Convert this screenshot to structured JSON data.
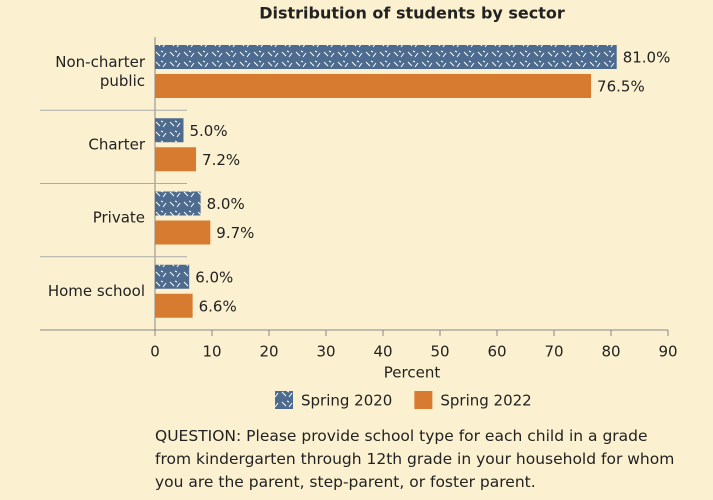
{
  "chart_data": {
    "type": "hbar",
    "title": "Distribution of students by sector",
    "categories": [
      "Non-charter\npublic",
      "Charter",
      "Private",
      "Home school"
    ],
    "series": [
      {
        "name": "Spring 2020",
        "color": "#4d6b8e",
        "pattern": true,
        "values": [
          81.0,
          5.0,
          8.0,
          6.0
        ],
        "value_labels": [
          "81.0%",
          "5.0%",
          "8.0%",
          "6.0%"
        ]
      },
      {
        "name": "Spring 2022",
        "color": "#d67b30",
        "pattern": false,
        "values": [
          76.5,
          7.2,
          9.7,
          6.6
        ],
        "value_labels": [
          "76.5%",
          "7.2%",
          "9.7%",
          "6.6%"
        ]
      }
    ],
    "xlabel": "Percent",
    "xlim": [
      0,
      90
    ],
    "xticks": [
      0,
      10,
      20,
      30,
      40,
      50,
      60,
      70,
      80,
      90
    ],
    "note": "QUESTION: Please provide school type for each child in a grade from kindergarten through 12th grade in your household for whom you are the parent, step-parent, or foster parent."
  }
}
